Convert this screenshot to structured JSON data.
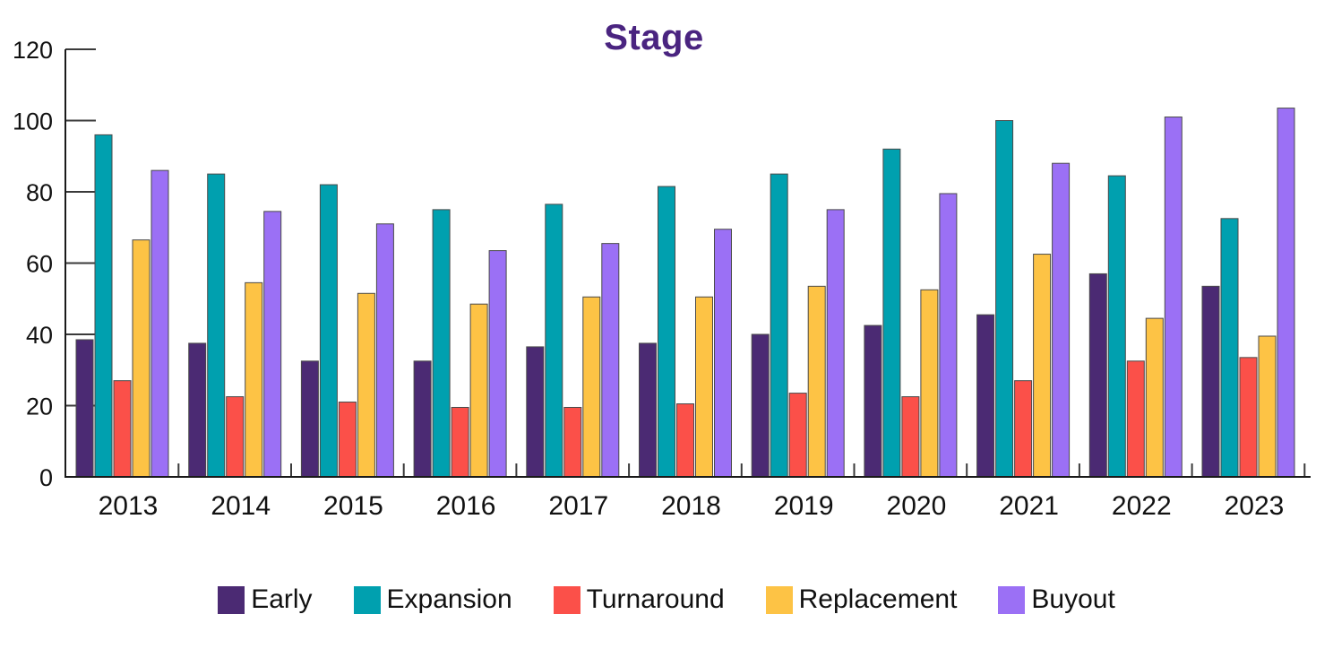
{
  "chart_data": {
    "type": "bar",
    "title": "Stage",
    "title_color": "#4A2480",
    "categories": [
      "2013",
      "2014",
      "2015",
      "2016",
      "2017",
      "2018",
      "2019",
      "2020",
      "2021",
      "2022",
      "2023"
    ],
    "series": [
      {
        "name": "Early",
        "color": "#4B2A73",
        "values": [
          38.5,
          37.5,
          32.5,
          32.5,
          36.5,
          37.5,
          40,
          42.5,
          45.5,
          57,
          53.5
        ]
      },
      {
        "name": "Expansion",
        "color": "#00A0AF",
        "values": [
          96,
          85,
          82,
          75,
          76.5,
          81.5,
          85,
          92,
          100,
          84.5,
          72.5
        ]
      },
      {
        "name": "Turnaround",
        "color": "#FB5049",
        "values": [
          27,
          22.5,
          21,
          19.5,
          19.5,
          20.5,
          23.5,
          22.5,
          27,
          32.5,
          33.5
        ]
      },
      {
        "name": "Replacement",
        "color": "#FDC345",
        "values": [
          66.5,
          54.5,
          51.5,
          48.5,
          50.5,
          50.5,
          53.5,
          52.5,
          62.5,
          44.5,
          39.5
        ]
      },
      {
        "name": "Buyout",
        "color": "#9B70F5",
        "values": [
          86,
          74.5,
          71,
          63.5,
          65.5,
          69.5,
          75,
          79.5,
          88,
          101,
          103.5
        ]
      }
    ],
    "ylim": [
      0,
      120
    ],
    "yticks": [
      0,
      20,
      40,
      60,
      80,
      100,
      120
    ],
    "grid": false,
    "legend_position": "bottom",
    "axis_color": "#1a1a1a",
    "tick_color": "#3a3a3a",
    "bar_outline": "#4a4a4a"
  }
}
